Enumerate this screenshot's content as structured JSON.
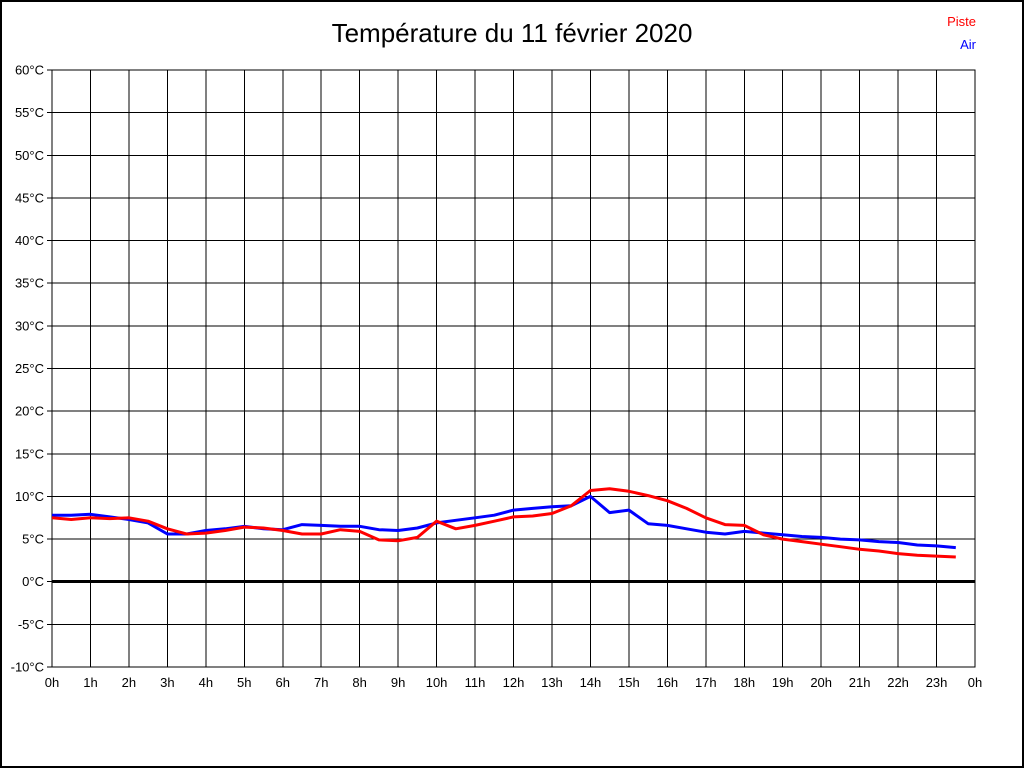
{
  "page": {
    "background": "#ffffff",
    "border_color": "#000000"
  },
  "title": "Température du 11 février 2020",
  "legend": {
    "items": [
      {
        "label": "Piste",
        "color": "#ff0000"
      },
      {
        "label": "Air",
        "color": "#0000ff"
      }
    ]
  },
  "chart_data": {
    "type": "line",
    "title": "Température du 11 février 2020",
    "xlabel": "",
    "ylabel": "",
    "xlim": [
      0,
      24
    ],
    "ylim": [
      -10,
      60
    ],
    "grid": true,
    "grid_color": "#000000",
    "axis_color": "#000000",
    "zero_line_value": 0,
    "legend_position": "top-right",
    "x_unit": "h",
    "y_unit": "°C",
    "x_tick_hours": [
      0,
      1,
      2,
      3,
      4,
      5,
      6,
      7,
      8,
      9,
      10,
      11,
      12,
      13,
      14,
      15,
      16,
      17,
      18,
      19,
      20,
      21,
      22,
      23,
      24
    ],
    "x_tick_labels": [
      "0h",
      "1h",
      "2h",
      "3h",
      "4h",
      "5h",
      "6h",
      "7h",
      "8h",
      "9h",
      "10h",
      "11h",
      "12h",
      "13h",
      "14h",
      "15h",
      "16h",
      "17h",
      "18h",
      "19h",
      "20h",
      "21h",
      "22h",
      "23h",
      "0h"
    ],
    "y_tick_values": [
      60,
      55,
      50,
      45,
      40,
      35,
      30,
      25,
      20,
      15,
      10,
      5,
      0,
      -5,
      -10
    ],
    "y_tick_labels": [
      "60°C",
      "55°C",
      "50°C",
      "45°C",
      "40°C",
      "35°C",
      "30°C",
      "25°C",
      "20°C",
      "15°C",
      "10°C",
      "5°C",
      "0°C",
      "-5°C",
      "-10°C"
    ],
    "x": [
      0,
      0.5,
      1,
      1.5,
      2,
      2.5,
      3,
      3.5,
      4,
      4.5,
      5,
      5.5,
      6,
      6.5,
      7,
      7.5,
      8,
      8.5,
      9,
      9.5,
      10,
      10.5,
      11,
      11.5,
      12,
      12.5,
      13,
      13.5,
      14,
      14.5,
      15,
      15.5,
      16,
      16.5,
      17,
      17.5,
      18,
      18.5,
      19,
      19.5,
      20,
      20.5,
      21,
      21.5,
      22,
      22.5,
      23,
      23.5
    ],
    "series": [
      {
        "name": "Piste",
        "color": "#ff0000",
        "values": [
          7.5,
          7.3,
          7.5,
          7.4,
          7.5,
          7.1,
          6.2,
          5.6,
          5.7,
          6.0,
          6.4,
          6.3,
          6.0,
          5.6,
          5.6,
          6.1,
          5.9,
          4.9,
          4.8,
          5.2,
          7.1,
          6.2,
          6.6,
          7.1,
          7.6,
          7.7,
          8.0,
          8.9,
          10.7,
          10.9,
          10.6,
          10.1,
          9.5,
          8.6,
          7.5,
          6.7,
          6.6,
          5.5,
          5.0,
          4.7,
          4.4,
          4.1,
          3.8,
          3.6,
          3.3,
          3.1,
          3.0,
          2.9
        ]
      },
      {
        "name": "Air",
        "color": "#0000ff",
        "values": [
          7.8,
          7.8,
          7.9,
          7.6,
          7.3,
          6.9,
          5.6,
          5.6,
          6.0,
          6.2,
          6.5,
          6.2,
          6.1,
          6.7,
          6.6,
          6.5,
          6.5,
          6.1,
          6.0,
          6.3,
          6.9,
          7.2,
          7.5,
          7.8,
          8.4,
          8.6,
          8.8,
          8.9,
          10.0,
          8.1,
          8.4,
          6.8,
          6.6,
          6.2,
          5.8,
          5.6,
          5.9,
          5.7,
          5.5,
          5.3,
          5.2,
          5.0,
          4.9,
          4.7,
          4.6,
          4.3,
          4.2,
          4.0
        ]
      }
    ]
  }
}
